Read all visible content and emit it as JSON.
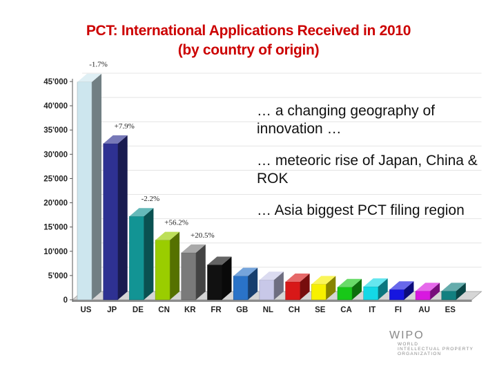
{
  "title_line1": "PCT:  International Applications Received in 2010",
  "title_line2": "(by country of origin)",
  "bullets": [
    "… a changing geography of innovation …",
    "… meteoric rise of Japan, China & ROK",
    "… Asia biggest PCT filing region"
  ],
  "logo": {
    "name": "WIPO",
    "sub1": "WORLD",
    "sub2": "INTELLECTUAL PROPERTY",
    "sub3": "ORGANIZATION"
  },
  "chart_data": {
    "type": "bar",
    "title": "PCT:  International Applications Received in 2010",
    "subtitle": "(by country of origin)",
    "xlabel": "",
    "ylabel": "",
    "ylim": [
      0,
      45000
    ],
    "yticks": [
      "0",
      "5'000",
      "10'000",
      "15'000",
      "20'000",
      "25'000",
      "30'000",
      "35'000",
      "40'000",
      "45'000"
    ],
    "categories": [
      "US",
      "JP",
      "DE",
      "CN",
      "KR",
      "FR",
      "GB",
      "NL",
      "CH",
      "SE",
      "CA",
      "IT",
      "FI",
      "AU",
      "ES"
    ],
    "values": [
      44900,
      32200,
      17200,
      12300,
      9700,
      7200,
      4900,
      4100,
      3700,
      3200,
      2600,
      2700,
      2100,
      1800,
      1800
    ],
    "colors": [
      "#cde6ee",
      "#2e3192",
      "#129494",
      "#9acd00",
      "#7a7a7a",
      "#111111",
      "#2a73c8",
      "#c8c8e8",
      "#d81818",
      "#f7f000",
      "#18c818",
      "#14d8e6",
      "#1616e0",
      "#d818e0",
      "#128080"
    ],
    "annotations": [
      {
        "category": "US",
        "text": "-1.7%"
      },
      {
        "category": "JP",
        "text": "+7.9%"
      },
      {
        "category": "DE",
        "text": "-2.2%"
      },
      {
        "category": "CN",
        "text": "+56.2%"
      },
      {
        "category": "KR",
        "text": "+20.5%"
      }
    ],
    "grid": true
  }
}
